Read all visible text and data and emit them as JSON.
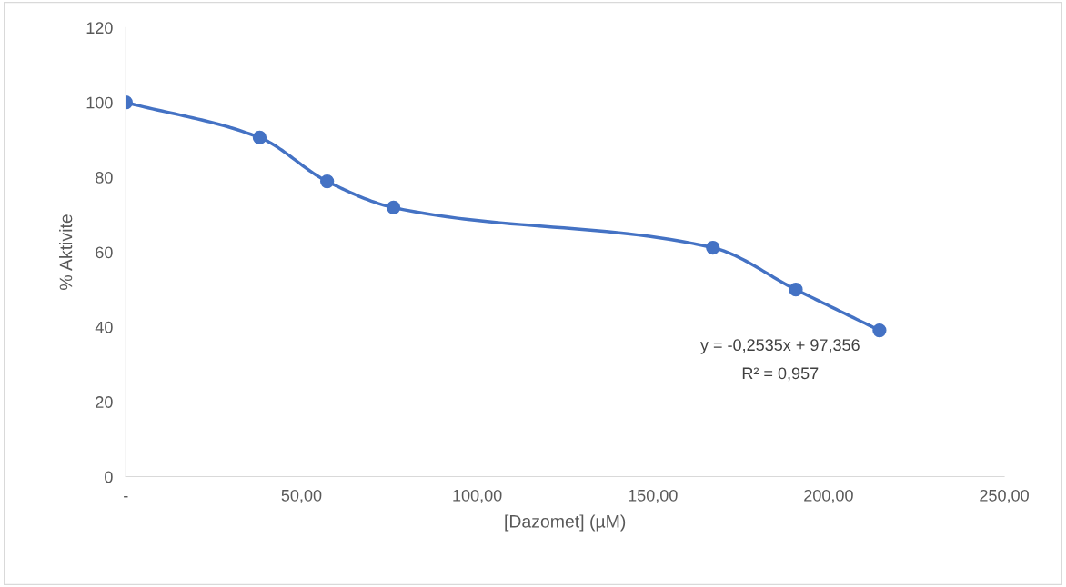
{
  "chart_data": {
    "type": "line",
    "xlabel": "[Dazomet] (µM)",
    "ylabel": "% Aktivite",
    "x": [
      0,
      38.1,
      57.3,
      76.2,
      167.1,
      190.7,
      214.5
    ],
    "series": [
      {
        "color": "#4472c4",
        "values": [
          100,
          90.6,
          78.9,
          71.9,
          61.2,
          50.0,
          39.1
        ]
      }
    ],
    "xlim": [
      0,
      250
    ],
    "xticks": [
      {
        "value": 0,
        "label": "-"
      },
      {
        "value": 50,
        "label": "50,00"
      },
      {
        "value": 100,
        "label": "100,00"
      },
      {
        "value": 150,
        "label": "150,00"
      },
      {
        "value": 200,
        "label": "200,00"
      },
      {
        "value": 250,
        "label": "250,00"
      }
    ],
    "ylim": [
      0,
      120
    ],
    "yticks": [
      0,
      20,
      40,
      60,
      80,
      100,
      120
    ],
    "annotations": [
      "y = -0,2535x + 97,356",
      "R² = 0,957"
    ],
    "marker": "circle",
    "line_style": "solid",
    "grid": false,
    "legend": false
  }
}
